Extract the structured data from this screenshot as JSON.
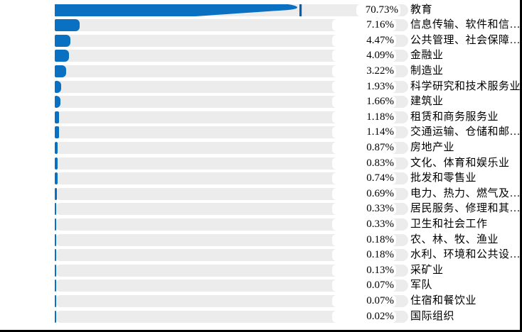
{
  "chart_data": {
    "type": "bar",
    "orientation": "horizontal",
    "unit": "%",
    "grid": false,
    "xlim": [
      0,
      100
    ],
    "categories": [
      "教育",
      "信息传输、软件和信…",
      "公共管理、社会保障…",
      "金融业",
      "制造业",
      "科学研究和技术服务业",
      "建筑业",
      "租赁和商务服务业",
      "交通运输、仓储和邮…",
      "房地产业",
      "文化、体育和娱乐业",
      "批发和零售业",
      "电力、热力、燃气及…",
      "居民服务、修理和其…",
      "卫生和社会工作",
      "农、林、牧、渔业",
      "水利、环境和公共设…",
      "采矿业",
      "军队",
      "住宿和餐饮业",
      "国际组织"
    ],
    "values": [
      70.73,
      7.16,
      4.47,
      4.09,
      3.22,
      1.93,
      1.66,
      1.18,
      1.14,
      0.87,
      0.83,
      0.74,
      0.69,
      0.33,
      0.33,
      0.18,
      0.18,
      0.13,
      0.07,
      0.07,
      0.02
    ],
    "value_labels": [
      "70.73%",
      "7.16%",
      "4.47%",
      "4.09%",
      "3.22%",
      "1.93%",
      "1.66%",
      "1.18%",
      "1.14%",
      "0.87%",
      "0.83%",
      "0.74%",
      "0.69%",
      "0.33%",
      "0.33%",
      "0.18%",
      "0.18%",
      "0.13%",
      "0.07%",
      "0.07%",
      "0.02%"
    ],
    "max_tick_marker_on": "教育"
  },
  "colors": {
    "bar": "#0a70c2",
    "tick": "#0a5fa8",
    "track": "#ececec",
    "chip": "#ffffff",
    "text": "#000000",
    "border": "#000000"
  }
}
